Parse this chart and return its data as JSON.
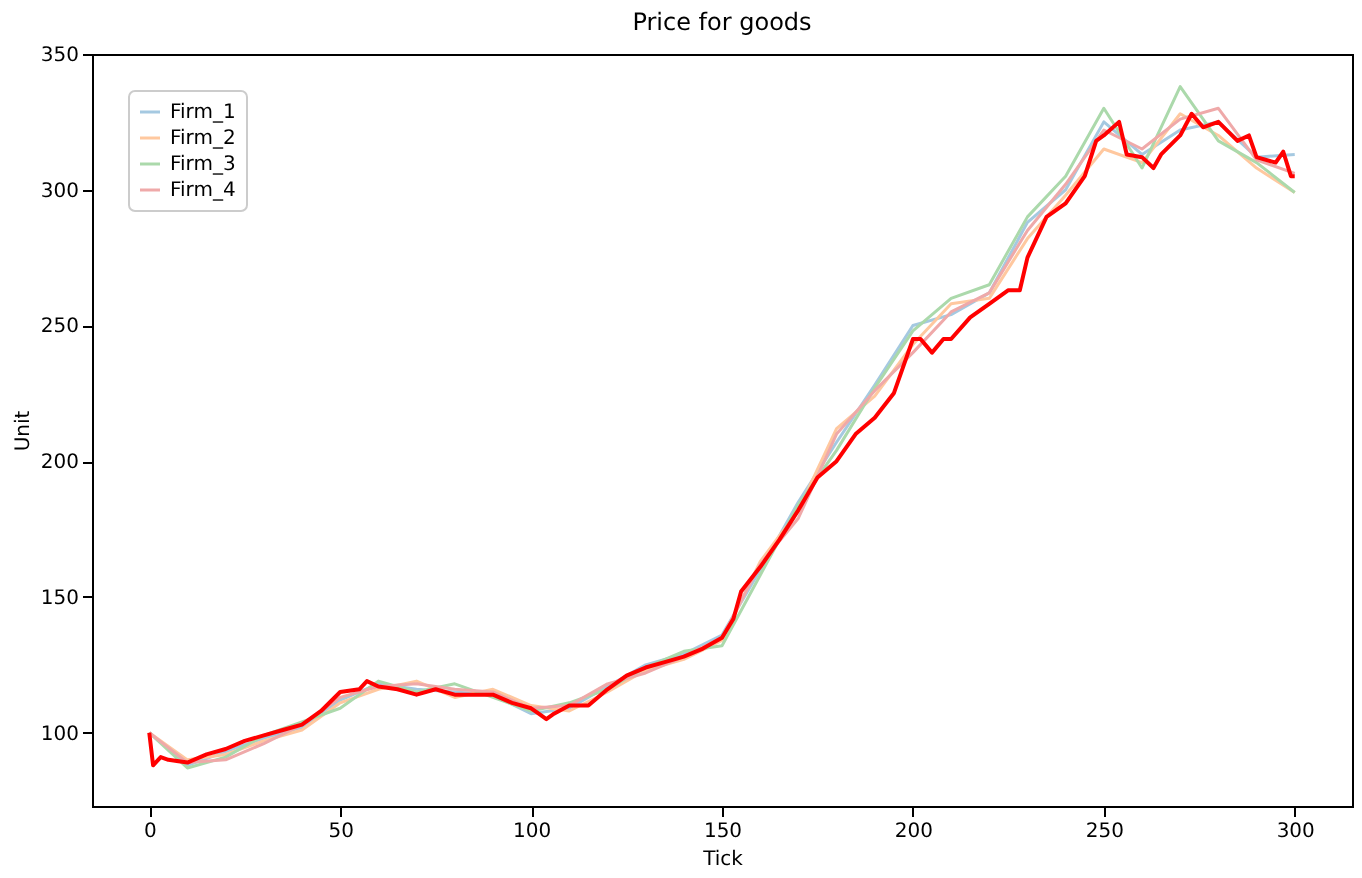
{
  "chart_data": {
    "type": "line",
    "title": "Price for goods",
    "xlabel": "Tick",
    "ylabel": "Unit",
    "xlim": [
      -15,
      315
    ],
    "xticks": [
      0,
      50,
      100,
      150,
      200,
      250,
      300
    ],
    "ylim": [
      73,
      350
    ],
    "yticks": [
      100,
      150,
      200,
      250,
      300,
      350
    ],
    "grid": false,
    "legend": "top left",
    "marker": "none",
    "line_style": "solid",
    "x": [
      0,
      10,
      20,
      30,
      40,
      50,
      60,
      70,
      80,
      90,
      100,
      110,
      120,
      130,
      140,
      150,
      160,
      170,
      180,
      190,
      200,
      210,
      220,
      230,
      240,
      250,
      260,
      270,
      280,
      290,
      300
    ],
    "series": [
      {
        "name": "Firm_1",
        "color": "#a5c9e1",
        "values": [
          100,
          88,
          93,
          98,
          102,
          112,
          118,
          116,
          115,
          114,
          107,
          109,
          117,
          125,
          129,
          136,
          160,
          185,
          207,
          228,
          250,
          254,
          262,
          288,
          300,
          325,
          313,
          322,
          325,
          312,
          313
        ]
      },
      {
        "name": "Firm_2",
        "color": "#ffc89f",
        "values": [
          100,
          90,
          92,
          97,
          101,
          111,
          116,
          119,
          113,
          116,
          110,
          108,
          115,
          123,
          127,
          134,
          163,
          182,
          212,
          224,
          243,
          258,
          260,
          282,
          298,
          315,
          310,
          328,
          320,
          308,
          299
        ]
      },
      {
        "name": "Firm_3",
        "color": "#abd9ab",
        "values": [
          100,
          87,
          91,
          99,
          104,
          109,
          119,
          115,
          118,
          113,
          108,
          111,
          116,
          124,
          130,
          132,
          158,
          184,
          204,
          227,
          248,
          260,
          265,
          290,
          305,
          330,
          308,
          338,
          318,
          310,
          299
        ]
      },
      {
        "name": "Firm_4",
        "color": "#efa9a9",
        "values": [
          100,
          89,
          90,
          96,
          103,
          113,
          117,
          118,
          116,
          115,
          109,
          110,
          118,
          122,
          128,
          135,
          162,
          179,
          210,
          226,
          240,
          255,
          262,
          285,
          302,
          322,
          315,
          326,
          330,
          311,
          306
        ]
      },
      {
        "color": "#ff0000",
        "x": [
          0,
          1,
          3,
          5,
          10,
          15,
          20,
          25,
          30,
          35,
          40,
          45,
          50,
          55,
          57,
          60,
          65,
          70,
          75,
          80,
          85,
          90,
          95,
          100,
          102,
          104,
          106,
          110,
          115,
          120,
          125,
          130,
          135,
          140,
          145,
          150,
          153,
          155,
          160,
          165,
          170,
          175,
          180,
          185,
          190,
          195,
          200,
          202,
          205,
          208,
          210,
          215,
          220,
          225,
          228,
          230,
          235,
          240,
          245,
          248,
          250,
          254,
          256,
          260,
          263,
          265,
          270,
          273,
          276,
          280,
          285,
          288,
          290,
          295,
          297,
          299,
          300
        ],
        "values": [
          100,
          88,
          91,
          90,
          89,
          92,
          94,
          97,
          99,
          101,
          103,
          108,
          115,
          116,
          119,
          117,
          116,
          114,
          116,
          114,
          114,
          114,
          111,
          109,
          107,
          105,
          107,
          110,
          110,
          116,
          121,
          124,
          126,
          128,
          131,
          135,
          142,
          152,
          161,
          171,
          182,
          194,
          200,
          210,
          216,
          225,
          245,
          245,
          240,
          245,
          245,
          253,
          258,
          263,
          263,
          275,
          290,
          295,
          305,
          318,
          320,
          325,
          313,
          312,
          308,
          313,
          320,
          328,
          323,
          325,
          318,
          320,
          312,
          310,
          314,
          305,
          305
        ]
      }
    ]
  }
}
